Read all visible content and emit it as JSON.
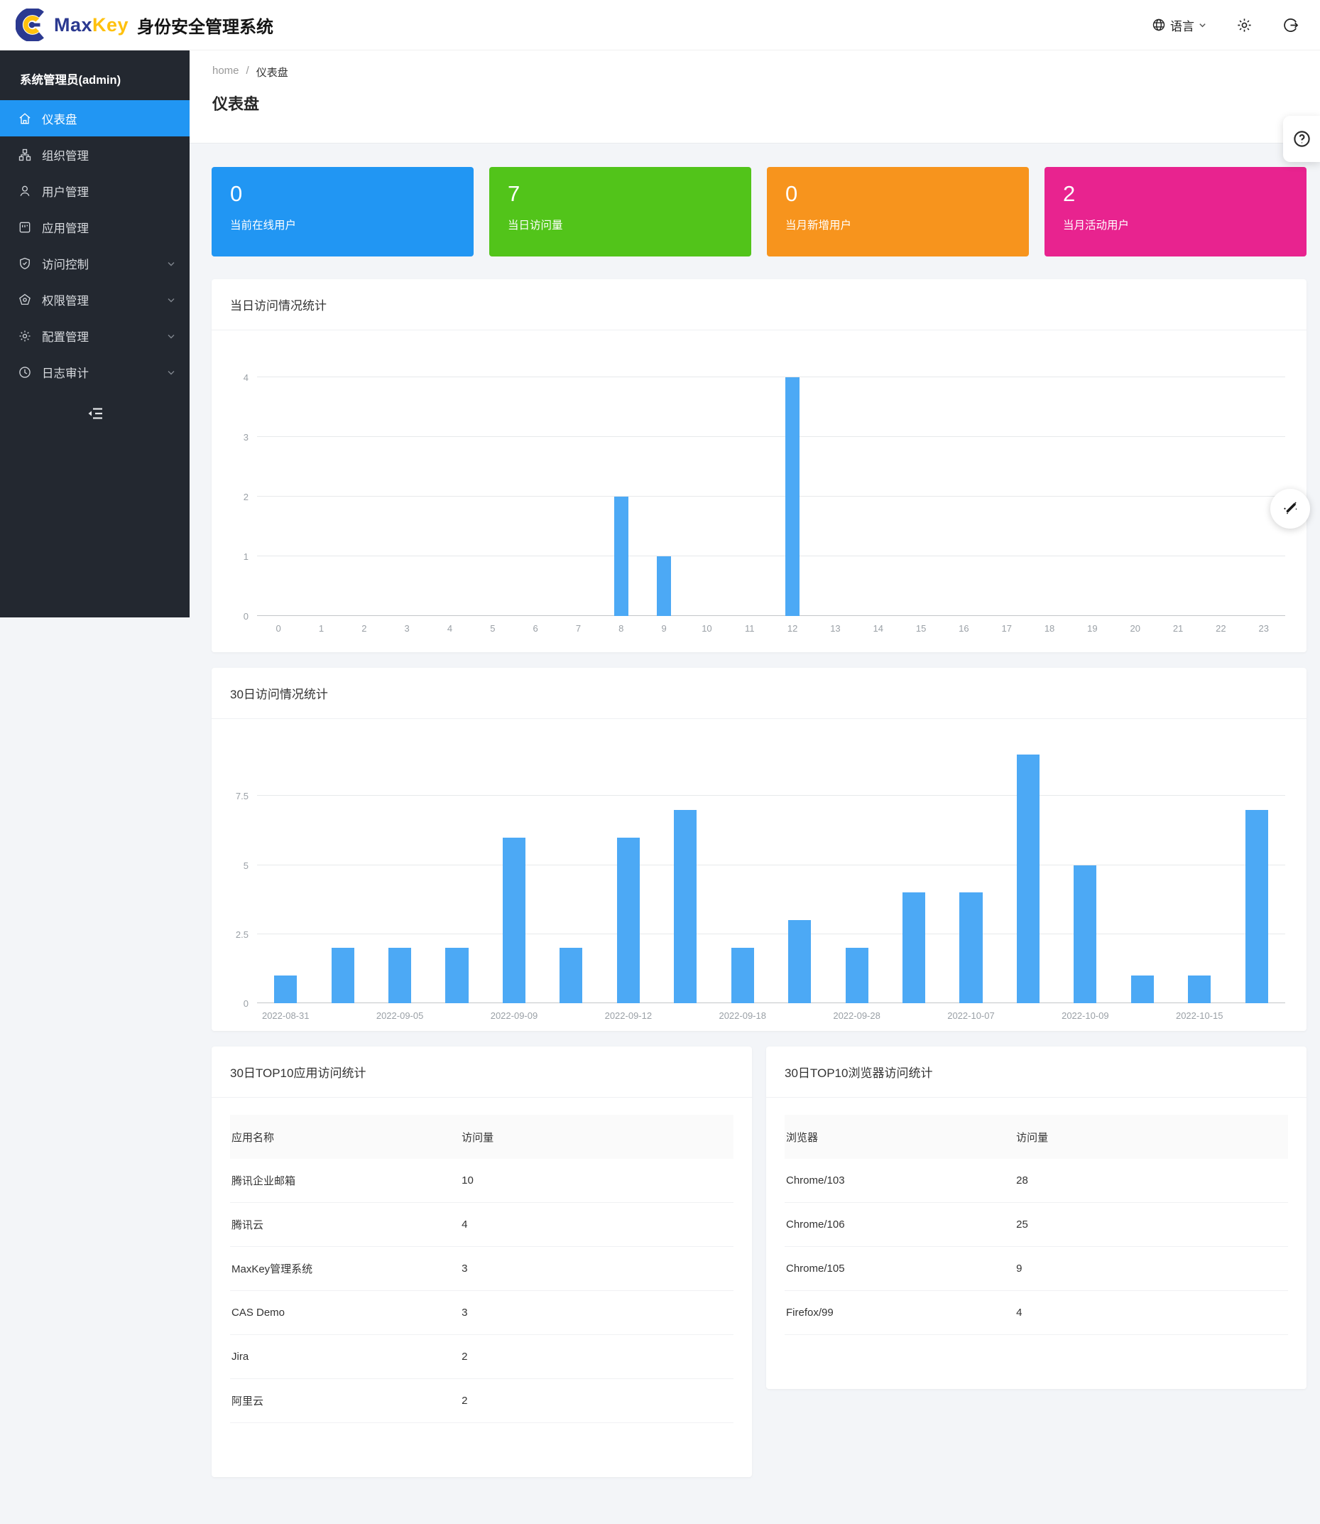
{
  "header": {
    "brand_max": "Max",
    "brand_key": "Key",
    "brand_title": "身份安全管理系统",
    "language_label": "语言",
    "icons": [
      "globe-icon",
      "chevron-down-icon",
      "gear-icon",
      "logout-icon"
    ]
  },
  "sidebar": {
    "user": "系统管理员(admin)",
    "items": [
      {
        "label": "仪表盘",
        "icon": "home-icon",
        "active": true,
        "expandable": false
      },
      {
        "label": "组织管理",
        "icon": "org-chart-icon",
        "active": false,
        "expandable": false
      },
      {
        "label": "用户管理",
        "icon": "user-icon",
        "active": false,
        "expandable": false
      },
      {
        "label": "应用管理",
        "icon": "app-icon",
        "active": false,
        "expandable": false
      },
      {
        "label": "访问控制",
        "icon": "shield-check-icon",
        "active": false,
        "expandable": true
      },
      {
        "label": "权限管理",
        "icon": "pentagon-icon",
        "active": false,
        "expandable": true
      },
      {
        "label": "配置管理",
        "icon": "gear-icon",
        "active": false,
        "expandable": true
      },
      {
        "label": "日志审计",
        "icon": "clock-icon",
        "active": false,
        "expandable": true
      }
    ],
    "fold_icon": "menu-fold-icon"
  },
  "breadcrumb": {
    "home": "home",
    "separator": "/",
    "current": "仪表盘"
  },
  "page_title": "仪表盘",
  "stats": [
    {
      "value": "0",
      "label": "当前在线用户",
      "color": "#2196f3"
    },
    {
      "value": "7",
      "label": "当日访问量",
      "color": "#52c41a"
    },
    {
      "value": "0",
      "label": "当月新增用户",
      "color": "#f7941d"
    },
    {
      "value": "2",
      "label": "当月活动用户",
      "color": "#e8238f"
    }
  ],
  "chart_data": [
    {
      "type": "bar",
      "title": "当日访问情况统计",
      "categories": [
        "0",
        "1",
        "2",
        "3",
        "4",
        "5",
        "6",
        "7",
        "8",
        "9",
        "10",
        "11",
        "12",
        "13",
        "14",
        "15",
        "16",
        "17",
        "18",
        "19",
        "20",
        "21",
        "22",
        "23"
      ],
      "values": [
        0,
        0,
        0,
        0,
        0,
        0,
        0,
        0,
        2,
        1,
        0,
        0,
        4,
        0,
        0,
        0,
        0,
        0,
        0,
        0,
        0,
        0,
        0,
        0
      ],
      "xlabel": "",
      "ylabel": "",
      "ylim": [
        0,
        4
      ],
      "yticks": [
        0,
        1,
        2,
        3,
        4
      ],
      "bar_color": "#4ca9f5",
      "grid": true,
      "legend": "none"
    },
    {
      "type": "bar",
      "title": "30日访问情况统计",
      "categories": [
        "2022-08-31",
        "",
        "2022-09-05",
        "",
        "2022-09-09",
        "",
        "2022-09-12",
        "",
        "2022-09-18",
        "",
        "2022-09-28",
        "",
        "2022-10-07",
        "",
        "2022-10-09",
        "",
        "2022-10-15",
        ""
      ],
      "values": [
        1,
        2,
        2,
        2,
        6,
        2,
        6,
        7,
        2,
        3,
        2,
        4,
        4,
        9,
        5,
        1,
        1,
        7
      ],
      "xlabel": "",
      "ylabel": "",
      "ylim": [
        0,
        9
      ],
      "yticks": [
        0,
        2.5,
        5,
        7.5
      ],
      "bar_color": "#4ca9f5",
      "grid": true,
      "legend": "none"
    }
  ],
  "tables": [
    {
      "title": "30日TOP10应用访问统计",
      "columns": [
        "应用名称",
        "访问量"
      ],
      "rows": [
        [
          "腾讯企业邮箱",
          "10"
        ],
        [
          "腾讯云",
          "4"
        ],
        [
          "MaxKey管理系统",
          "3"
        ],
        [
          "CAS Demo",
          "3"
        ],
        [
          "Jira",
          "2"
        ],
        [
          "阿里云",
          "2"
        ]
      ]
    },
    {
      "title": "30日TOP10浏览器访问统计",
      "columns": [
        "浏览器",
        "访问量"
      ],
      "rows": [
        [
          "Chrome/103",
          "28"
        ],
        [
          "Chrome/106",
          "25"
        ],
        [
          "Chrome/105",
          "9"
        ],
        [
          "Firefox/99",
          "4"
        ]
      ]
    }
  ],
  "floating": {
    "help_icon": "question-circle-icon",
    "theme_icon": "magic-wand-icon"
  }
}
